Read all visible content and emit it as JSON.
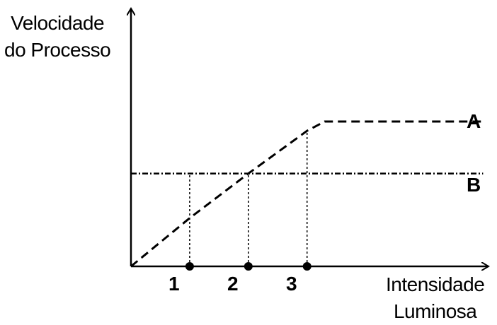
{
  "chart_data": {
    "type": "line",
    "title": "",
    "ylabel_line1": "Velocidade",
    "ylabel_line2": "do Processo",
    "xlabel_line1": "Intensidade",
    "xlabel_line2": "Luminosa",
    "x_ticks": [
      "1",
      "2",
      "3"
    ],
    "x_tick_values": [
      1,
      2,
      3
    ],
    "xlim": [
      0,
      6
    ],
    "ylim": [
      0,
      10
    ],
    "series": [
      {
        "name": "A",
        "style": "dashed",
        "points": [
          [
            0,
            0
          ],
          [
            1,
            2.6
          ],
          [
            2,
            5.0
          ],
          [
            3,
            7.3
          ],
          [
            3.3,
            7.8
          ],
          [
            6,
            7.8
          ]
        ]
      },
      {
        "name": "B",
        "style": "dash-dot",
        "points": [
          [
            0,
            5.0
          ],
          [
            6,
            5.0
          ]
        ]
      }
    ],
    "guides": [
      {
        "x": 1,
        "y_to": 5.0
      },
      {
        "x": 2,
        "y_to": 5.0
      },
      {
        "x": 3,
        "y_to": 7.3
      }
    ],
    "grid": false,
    "color": "#000000"
  }
}
